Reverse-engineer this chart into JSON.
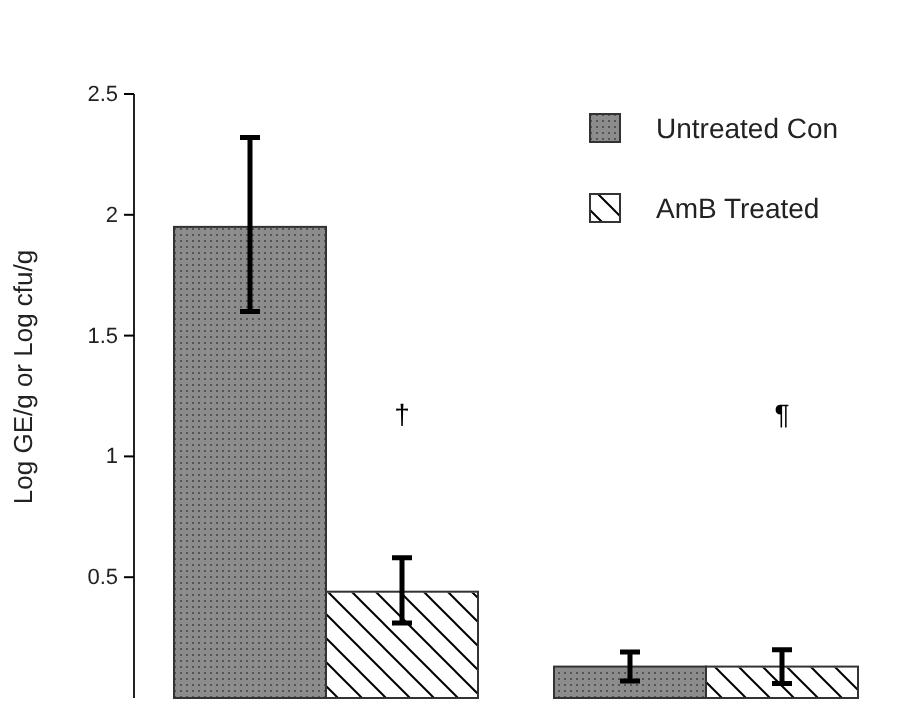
{
  "chart_data": {
    "type": "bar",
    "ylabel": "Log GE/g or Log cfu/g",
    "categories": [
      null,
      null
    ],
    "series": [
      {
        "name": "Untreated Con",
        "color": "#8c8c8c",
        "values": [
          1.95,
          0.13
        ],
        "errors": [
          [
            1.6,
            2.32
          ],
          [
            0.07,
            0.19
          ]
        ]
      },
      {
        "name": "AmB Treated",
        "color": "#ffffff",
        "values": [
          0.44,
          0.13
        ],
        "errors": [
          [
            0.31,
            0.58
          ],
          [
            0.06,
            0.2
          ]
        ]
      }
    ],
    "ylim": [
      0,
      2.5
    ],
    "yticks": [
      0.5,
      1,
      1.5,
      2,
      2.5
    ],
    "legend": "top right",
    "grid": false,
    "annotations": [
      "†",
      "¶"
    ]
  }
}
